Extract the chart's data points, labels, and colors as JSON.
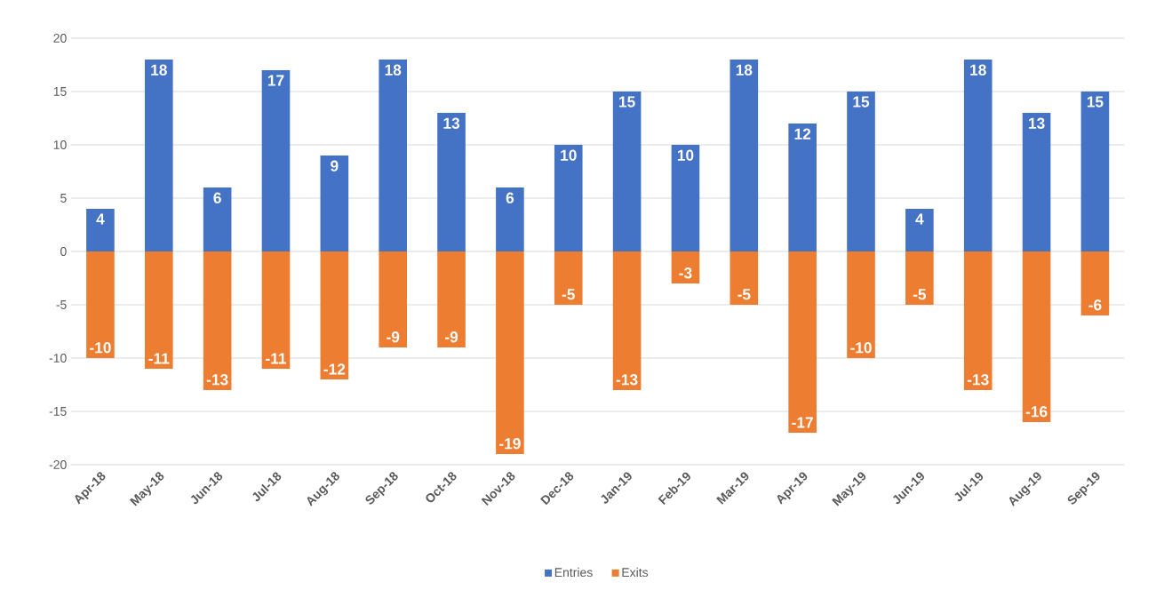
{
  "chart_data": {
    "type": "bar",
    "stacked": true,
    "data_labels": true,
    "grid": "y",
    "legend": "bottom",
    "categories": [
      "Apr-18",
      "May-18",
      "Jun-18",
      "Jul-18",
      "Aug-18",
      "Sep-18",
      "Oct-18",
      "Nov-18",
      "Dec-18",
      "Jan-19",
      "Feb-19",
      "Mar-19",
      "Apr-19",
      "May-19",
      "Jun-19",
      "Jul-19",
      "Aug-19",
      "Sep-19"
    ],
    "series": [
      {
        "name": "Entries",
        "color": "#4472c4",
        "values": [
          4,
          18,
          6,
          17,
          9,
          18,
          13,
          6,
          10,
          15,
          10,
          18,
          12,
          15,
          4,
          18,
          13,
          15
        ]
      },
      {
        "name": "Exits",
        "color": "#ed7d31",
        "values": [
          -10,
          -11,
          -13,
          -11,
          -12,
          -9,
          -9,
          -19,
          -5,
          -13,
          -3,
          -5,
          -17,
          -10,
          -5,
          -13,
          -16,
          -6
        ]
      }
    ],
    "ylim": [
      -20,
      20
    ],
    "yticks": [
      -20,
      -15,
      -10,
      -5,
      0,
      5,
      10,
      15,
      20
    ]
  }
}
